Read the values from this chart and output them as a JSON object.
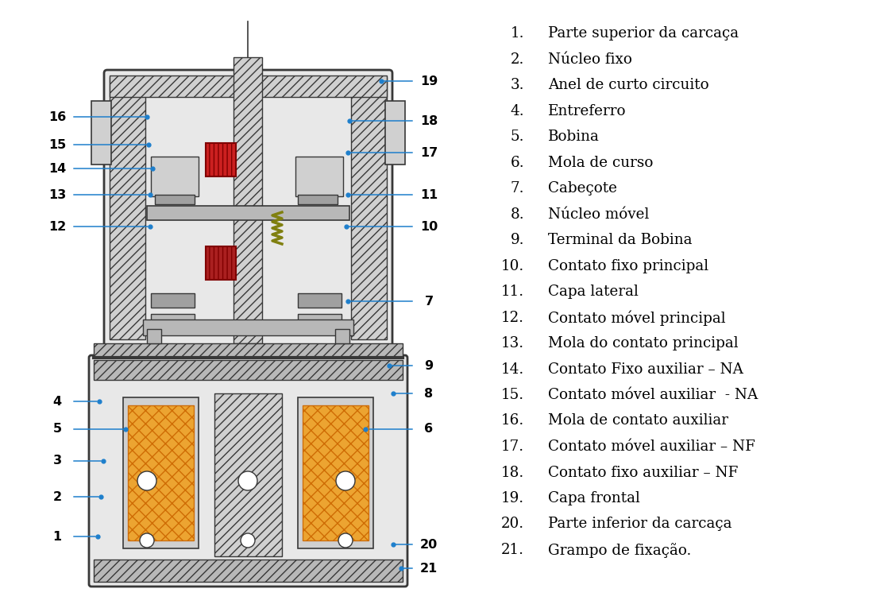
{
  "figsize": [
    11.08,
    7.65
  ],
  "dpi": 100,
  "background_color": "#ffffff",
  "list_items": [
    "Parte superior da carcaça",
    "Núcleo fixo",
    "Anel de curto circuito",
    "Entreferro",
    "Bobina",
    "Mola de curso",
    "Cabeçote",
    "Núcleo móvel",
    "Terminal da Bobina",
    "Contato fixo principal",
    "Capa lateral",
    "Contato móvel principal",
    "Mola do contato principal",
    "Contato Fixo auxiliar – NA",
    "Contato móvel auxiliar  - NA",
    "Mola de contato auxiliar",
    "Contato móvel auxiliar – NF",
    "Contato fixo auxiliar – NF",
    "Capa frontal",
    "Parte inferior da carcaça",
    "Grampo de fixação."
  ],
  "line_color": "#1e7fcc",
  "text_color": "#000000",
  "list_fontsize": 13.2
}
